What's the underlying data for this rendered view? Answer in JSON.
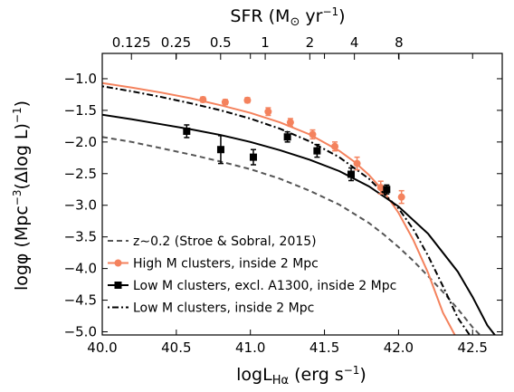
{
  "chart_data": {
    "type": "line",
    "xlabel": "logL",
    "xlabel_sub": "Hα",
    "xlabel_units": " (erg s",
    "xlabel_units_sup": "−1",
    "xlabel_close": ")",
    "ylabel": "logφ (Mpc",
    "ylabel_sup1": "−3",
    "ylabel_mid": "(Δlog L)",
    "ylabel_sup2": "−1",
    "ylabel_close": ")",
    "top_axis_label": "SFR (M",
    "top_axis_label_sub": "⊙",
    "top_axis_label_units": " yr",
    "top_axis_label_sup": "−1",
    "top_axis_label_close": ")",
    "xlim": [
      40.0,
      42.7
    ],
    "ylim": [
      -5.05,
      -0.6
    ],
    "x_ticks": [
      40.0,
      40.5,
      41.0,
      41.5,
      42.0,
      42.5
    ],
    "x_tick_labels": [
      "40.0",
      "40.5",
      "41.0",
      "41.5",
      "42.0",
      "42.5"
    ],
    "y_ticks": [
      -1.0,
      -1.5,
      -2.0,
      -2.5,
      -3.0,
      -3.5,
      -4.0,
      -4.5,
      -5.0
    ],
    "y_tick_labels": [
      "−1.0",
      "−1.5",
      "−2.0",
      "−2.5",
      "−3.0",
      "−3.5",
      "−4.0",
      "−4.5",
      "−5.0"
    ],
    "top_ticks_sfr": [
      0.125,
      0.25,
      0.5,
      1,
      2,
      4,
      8
    ],
    "top_tick_labels": [
      "0.125",
      "0.25",
      "0.5",
      "1",
      "2",
      "4",
      "8"
    ],
    "sfr_to_logL_offset": 41.1,
    "grid": false,
    "legend_position": "lower-left",
    "series": [
      {
        "name": "z∼0.2 (Stroe & Sobral, 2015)",
        "kind": "line",
        "style": "dashed",
        "color": "#555555",
        "x": [
          40.0,
          40.2,
          40.4,
          40.6,
          40.8,
          41.0,
          41.2,
          41.4,
          41.6,
          41.8,
          41.9,
          42.0,
          42.1,
          42.2,
          42.3,
          42.4,
          42.5,
          42.55
        ],
        "y": [
          -1.92,
          -2.0,
          -2.1,
          -2.2,
          -2.31,
          -2.43,
          -2.58,
          -2.77,
          -2.99,
          -3.28,
          -3.46,
          -3.66,
          -3.88,
          -4.12,
          -4.37,
          -4.64,
          -4.93,
          -5.05
        ]
      },
      {
        "name": "High M clusters, inside 2 Mpc",
        "kind": "line",
        "style": "solid",
        "color": "#f4825d",
        "x": [
          40.0,
          40.2,
          40.4,
          40.6,
          40.8,
          41.0,
          41.2,
          41.4,
          41.6,
          41.7,
          41.8,
          41.9,
          42.0,
          42.1,
          42.2,
          42.3,
          42.38
        ],
        "y": [
          -1.07,
          -1.14,
          -1.22,
          -1.31,
          -1.42,
          -1.54,
          -1.69,
          -1.88,
          -2.14,
          -2.31,
          -2.52,
          -2.78,
          -3.12,
          -3.55,
          -4.07,
          -4.7,
          -5.05
        ]
      },
      {
        "name": "High M clusters, inside 2 Mpc",
        "kind": "points",
        "color": "#f4825d",
        "x": [
          40.68,
          40.83,
          40.98,
          41.12,
          41.27,
          41.42,
          41.57,
          41.72,
          41.88,
          42.02
        ],
        "y": [
          -1.33,
          -1.37,
          -1.34,
          -1.52,
          -1.69,
          -1.88,
          -2.07,
          -2.34,
          -2.72,
          -2.87
        ],
        "yerr": [
          0.04,
          0.04,
          0.04,
          0.06,
          0.06,
          0.07,
          0.07,
          0.1,
          0.1,
          0.1
        ]
      },
      {
        "name": "Low M clusters, excl. A1300, inside 2 Mpc",
        "kind": "line",
        "style": "solid",
        "color": "#000000",
        "x": [
          40.0,
          40.2,
          40.4,
          40.6,
          40.8,
          41.0,
          41.2,
          41.4,
          41.6,
          41.8,
          42.0,
          42.2,
          42.4,
          42.5,
          42.6,
          42.65
        ],
        "y": [
          -1.57,
          -1.64,
          -1.72,
          -1.8,
          -1.89,
          -2.0,
          -2.13,
          -2.28,
          -2.46,
          -2.7,
          -3.02,
          -3.45,
          -4.05,
          -4.45,
          -4.9,
          -5.05
        ]
      },
      {
        "name": "Low M clusters, excl. A1300, inside 2 Mpc",
        "kind": "points",
        "color": "#000000",
        "x": [
          40.57,
          40.8,
          41.02,
          41.25,
          41.45,
          41.68,
          41.92
        ],
        "y": [
          -1.83,
          -2.12,
          -2.24,
          -1.92,
          -2.14,
          -2.51,
          -2.75
        ],
        "yerr": [
          0.1,
          0.22,
          0.12,
          0.08,
          0.1,
          0.1,
          0.07
        ]
      },
      {
        "name": "Low M clusters, inside 2 Mpc",
        "kind": "line",
        "style": "dashdot",
        "color": "#000000",
        "x": [
          40.0,
          40.2,
          40.4,
          40.6,
          40.8,
          41.0,
          41.2,
          41.4,
          41.6,
          41.8,
          42.0,
          42.1,
          42.2,
          42.3,
          42.4,
          42.48
        ],
        "y": [
          -1.12,
          -1.2,
          -1.29,
          -1.39,
          -1.5,
          -1.63,
          -1.79,
          -1.99,
          -2.24,
          -2.58,
          -3.05,
          -3.38,
          -3.8,
          -4.28,
          -4.78,
          -5.05
        ]
      }
    ],
    "legend_entries": [
      {
        "label": "z∼0.2 (Stroe & Sobral, 2015)",
        "style": "dashed",
        "color": "#555555",
        "marker": "none"
      },
      {
        "label": "High M clusters, inside 2 Mpc",
        "style": "solid",
        "color": "#f4825d",
        "marker": "circle"
      },
      {
        "label": "Low M clusters, excl. A1300, inside 2 Mpc",
        "style": "solid",
        "color": "#000000",
        "marker": "square"
      },
      {
        "label": "Low M clusters, inside 2 Mpc",
        "style": "dashdot",
        "color": "#000000",
        "marker": "none"
      }
    ]
  }
}
